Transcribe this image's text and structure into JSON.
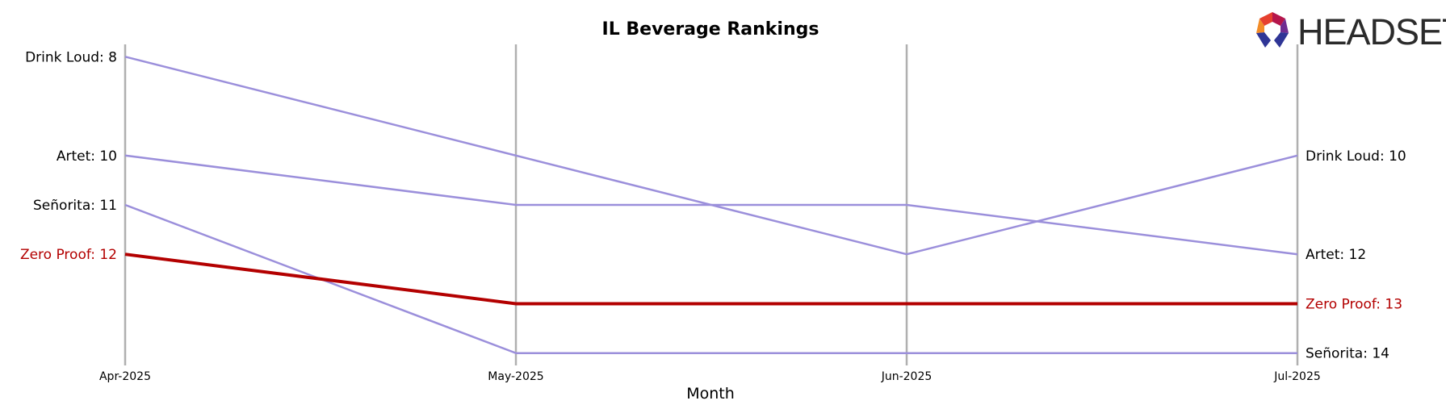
{
  "chart_data": {
    "type": "line",
    "title": "IL Beverage Rankings",
    "xlabel": "Month",
    "ylabel": "",
    "x": [
      "Apr-2025",
      "May-2025",
      "Jun-2025",
      "Jul-2025"
    ],
    "ylim": [
      7.75,
      14.25
    ],
    "y_inverted": true,
    "grid": "vertical lines at each month",
    "series": [
      {
        "name": "Drink Loud",
        "values": [
          8,
          10,
          12,
          10
        ],
        "color": "#9b8fdb",
        "highlight": false,
        "start_label": "Drink Loud: 8",
        "end_label": "Drink Loud: 10"
      },
      {
        "name": "Artet",
        "values": [
          10,
          11,
          11,
          12
        ],
        "color": "#9b8fdb",
        "highlight": false,
        "start_label": "Artet: 10",
        "end_label": "Artet: 12"
      },
      {
        "name": "Señorita",
        "values": [
          11,
          14,
          14,
          14
        ],
        "color": "#9b8fdb",
        "highlight": false,
        "start_label": "Señorita: 11",
        "end_label": "Señorita: 14"
      },
      {
        "name": "Zero Proof",
        "values": [
          12,
          13,
          13,
          13
        ],
        "color": "#b30000",
        "highlight": true,
        "start_label": "Zero Proof: 12",
        "end_label": "Zero Proof: 13"
      }
    ]
  },
  "logo": {
    "text": "HEADSET"
  },
  "colors": {
    "highlight": "#b30000",
    "muted": "#9b8fdb",
    "gridline": "#b0b0b0"
  }
}
